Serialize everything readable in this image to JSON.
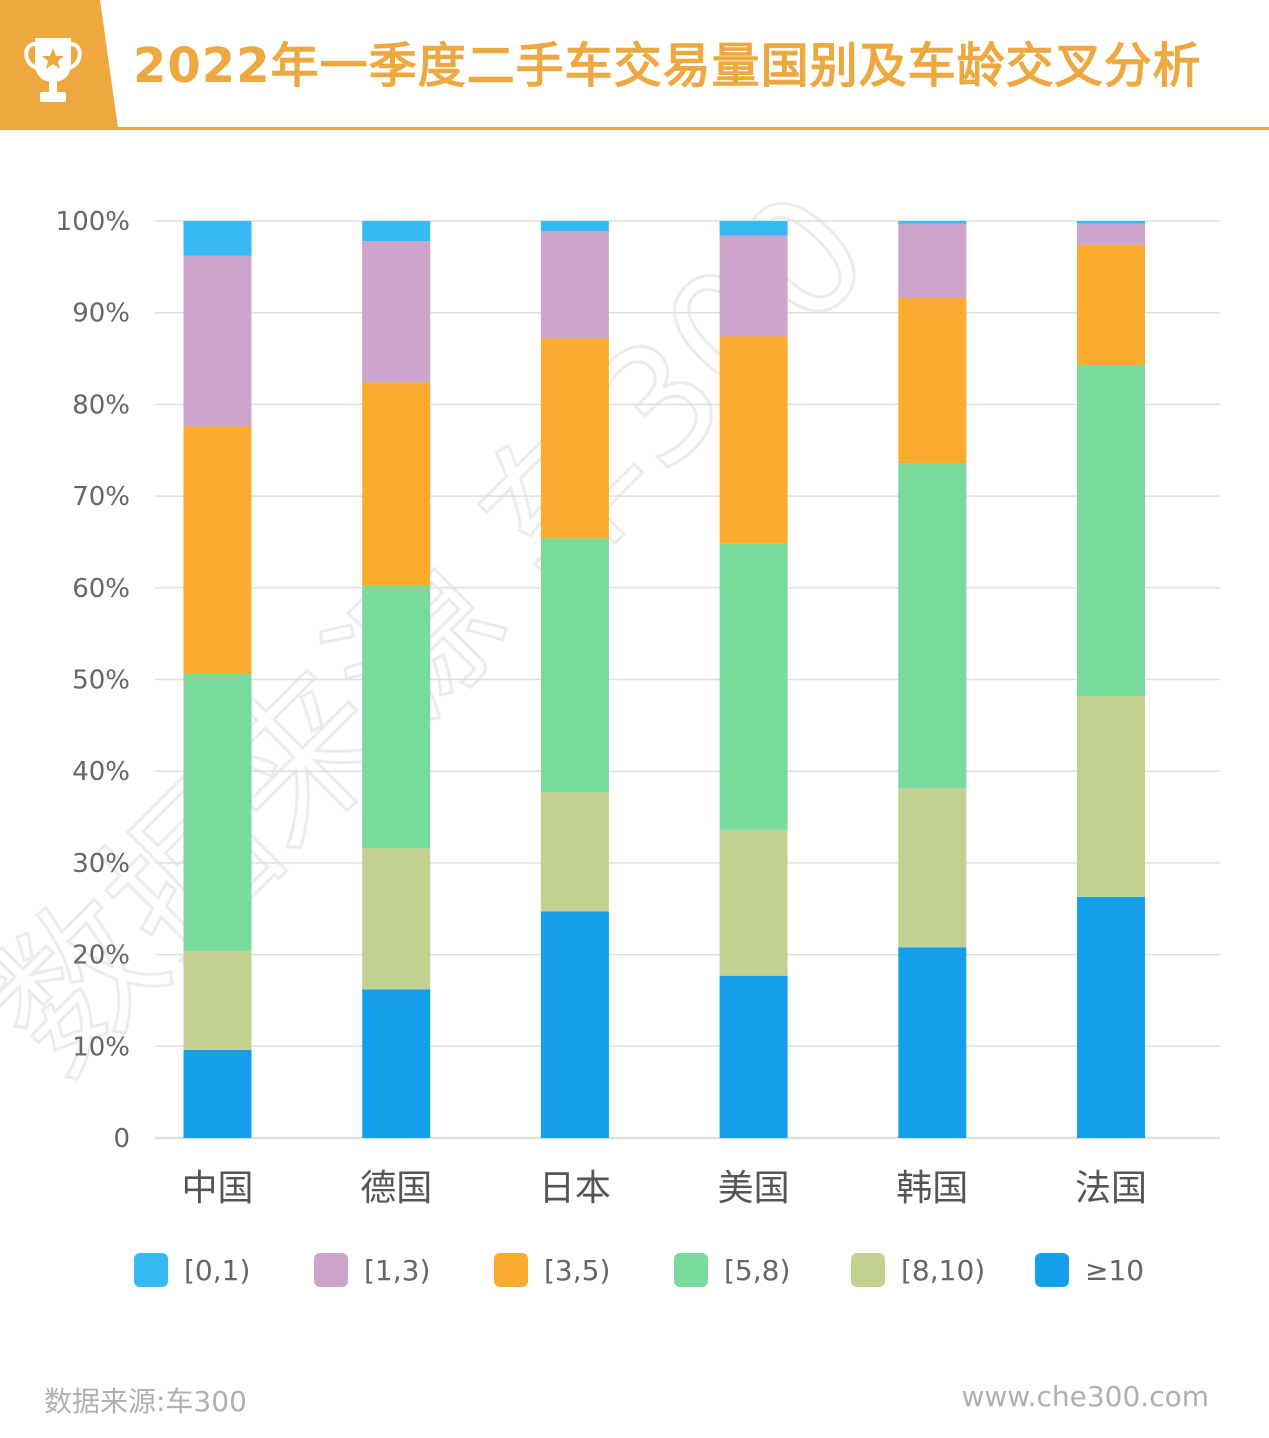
{
  "header": {
    "title": "2022年一季度二手车交易量国别及车龄交叉分析",
    "icon": "trophy-icon",
    "accent": "#EDA83F"
  },
  "chart_data": {
    "type": "bar",
    "stacked": true,
    "title": "2022年一季度二手车交易量国别及车龄交叉分析",
    "xlabel": "",
    "ylabel": "",
    "ylim": [
      0,
      100
    ],
    "yticks": [
      "0",
      "10%",
      "20%",
      "30%",
      "40%",
      "50%",
      "60%",
      "70%",
      "80%",
      "90%",
      "100%"
    ],
    "grid": true,
    "legend_position": "bottom",
    "categories": [
      "中国",
      "德国",
      "日本",
      "美国",
      "韩国",
      "法国"
    ],
    "series": [
      {
        "name": "≥10",
        "color": "#159FEB",
        "values": [
          9.6,
          16.2,
          24.7,
          17.7,
          20.8,
          26.3
        ]
      },
      {
        "name": "[8,10)",
        "color": "#C2D190",
        "values": [
          10.8,
          15.4,
          13.0,
          15.9,
          17.3,
          21.9
        ]
      },
      {
        "name": "[5,8)",
        "color": "#79DA9D",
        "values": [
          30.2,
          28.6,
          27.7,
          31.2,
          35.5,
          36.1
        ]
      },
      {
        "name": "[3,5)",
        "color": "#FBAB2D",
        "values": [
          27.0,
          22.2,
          21.8,
          22.6,
          18.0,
          13.1
        ]
      },
      {
        "name": "[1,3)",
        "color": "#CDA5CB",
        "values": [
          18.6,
          15.4,
          11.7,
          11.0,
          8.1,
          2.3
        ]
      },
      {
        "name": "[0,1)",
        "color": "#37B9F4",
        "values": [
          3.8,
          2.2,
          1.1,
          1.6,
          0.3,
          0.3
        ]
      }
    ]
  },
  "legend": [
    {
      "label": "[0,1)",
      "color": "#37B9F4"
    },
    {
      "label": "[1,3)",
      "color": "#CDA5CB"
    },
    {
      "label": "[3,5)",
      "color": "#FBAB2D"
    },
    {
      "label": "[5,8)",
      "color": "#79DA9D"
    },
    {
      "label": "[8,10)",
      "color": "#C2D190"
    },
    {
      "label": "≥10",
      "color": "#159FEB"
    }
  ],
  "watermark": "数据来源 车300",
  "footer": {
    "source": "数据来源:车300",
    "website": "www.che300.com"
  }
}
